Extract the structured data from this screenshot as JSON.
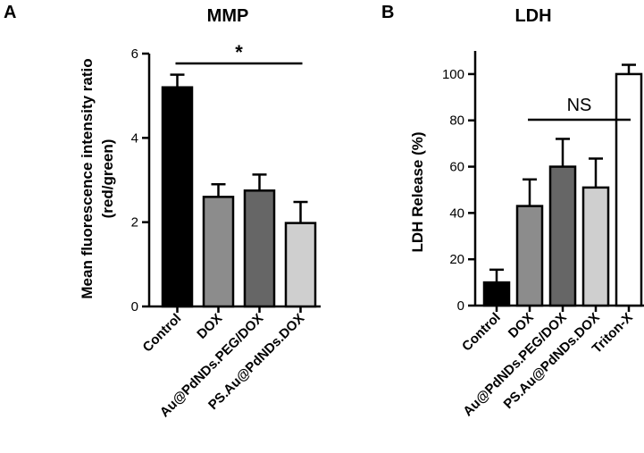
{
  "panel_a": {
    "letter": "A",
    "chart_data": {
      "type": "bar",
      "title": "MMP",
      "ylabel_line1": "Mean fluorescence intensity ratio",
      "ylabel_line2": "(red/green)",
      "ylim": [
        0,
        6
      ],
      "yticks": [
        0,
        2,
        4,
        6
      ],
      "categories": [
        "Control",
        "DOX",
        "Au@PdNDs.PEG/DOX",
        "PS.Au@PdNDs.DOX"
      ],
      "values": [
        5.2,
        2.6,
        2.75,
        1.98
      ],
      "errors": [
        0.3,
        0.3,
        0.38,
        0.5
      ],
      "colors": [
        "#000000",
        "#8c8c8c",
        "#666666",
        "#cfcfcf"
      ],
      "annotation": {
        "text": "*",
        "from": 0,
        "to": 3,
        "y": 5.83
      }
    }
  },
  "panel_b": {
    "letter": "B",
    "chart_data": {
      "type": "bar",
      "title": "LDH",
      "ylabel": "LDH Release (%)",
      "ylim": [
        0,
        110
      ],
      "yticks": [
        0,
        20,
        40,
        60,
        80,
        100
      ],
      "categories": [
        "Control",
        "DOX",
        "Au@PdNDs.PEG/DOX",
        "PS.Au@PdNDs.DOX",
        "Triton-X"
      ],
      "values": [
        10,
        43,
        60,
        51,
        100
      ],
      "errors": [
        5.5,
        11.5,
        12,
        12.5,
        4
      ],
      "colors": [
        "#000000",
        "#8c8c8c",
        "#666666",
        "#cfcfcf",
        "#ffffff"
      ],
      "annotation": {
        "text": "NS",
        "from": 1,
        "to": 4,
        "y": 80
      }
    }
  }
}
